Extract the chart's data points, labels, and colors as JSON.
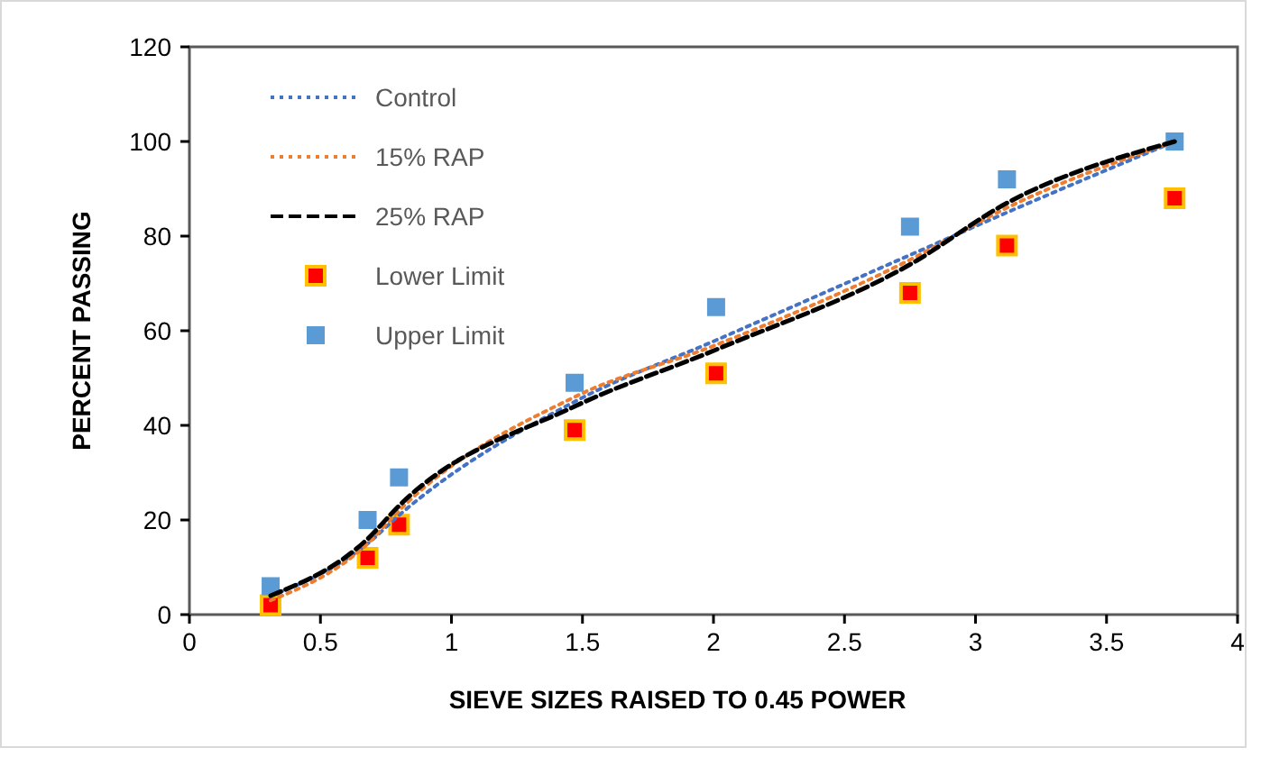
{
  "chart_data": {
    "type": "line",
    "xlabel": "SIEVE SIZES RAISED TO 0.45 POWER",
    "ylabel": "PERCENT PASSING",
    "xlim": [
      0,
      4
    ],
    "xticks": [
      0,
      0.5,
      1,
      1.5,
      2,
      2.5,
      3,
      3.5,
      4
    ],
    "ylim": [
      0,
      120
    ],
    "yticks": [
      0,
      20,
      40,
      60,
      80,
      100,
      120
    ],
    "grid": false,
    "legend": "top left",
    "x": [
      0.31,
      0.68,
      0.8,
      1.47,
      2.01,
      2.75,
      3.12,
      3.76
    ],
    "series": [
      {
        "name": "Control",
        "type": "line",
        "color": "#4472c4",
        "line_style": "dotted",
        "marker": "none",
        "values": [
          4,
          15,
          21,
          45,
          58,
          76,
          85,
          100
        ]
      },
      {
        "name": "15% RAP",
        "type": "line",
        "color": "#ed7d31",
        "line_style": "dotted",
        "marker": "none",
        "values": [
          3,
          15,
          22,
          46,
          57,
          75,
          86,
          100
        ]
      },
      {
        "name": "25% RAP",
        "type": "line",
        "color": "#000000",
        "line_style": "dashed",
        "marker": "none",
        "values": [
          4,
          16,
          23,
          44,
          56,
          74,
          87,
          100
        ]
      },
      {
        "name": "Lower Limit",
        "type": "scatter",
        "color": "#ff0000",
        "marker": "square",
        "values": [
          2,
          12,
          19,
          39,
          51,
          68,
          78,
          88
        ]
      },
      {
        "name": "Upper Limit",
        "type": "scatter",
        "color": "#5b9bd5",
        "marker": "square",
        "values": [
          6,
          20,
          29,
          49,
          65,
          82,
          92,
          100
        ]
      }
    ]
  }
}
